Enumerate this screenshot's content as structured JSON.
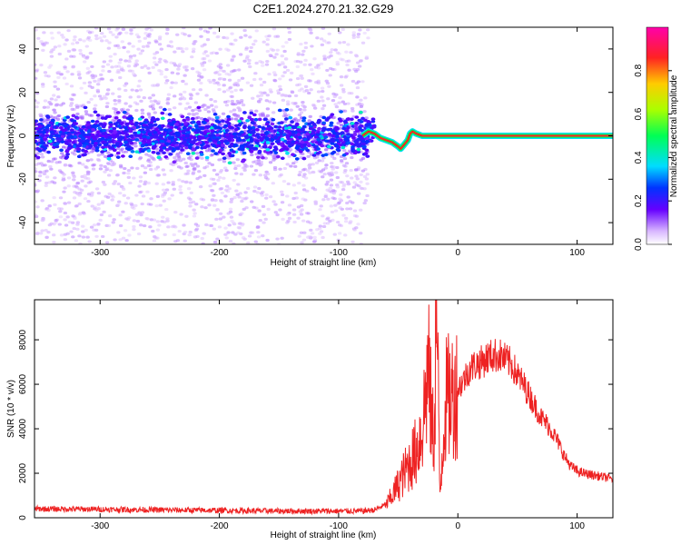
{
  "title": "C2E1.2024.270.21.32.G29",
  "chart_data": [
    {
      "type": "heatmap",
      "xlabel": "Height of straight line (km)",
      "ylabel": "Frequency (Hz)",
      "xlim": [
        -355,
        130
      ],
      "ylim": [
        -50,
        50
      ],
      "xticks": [
        -300,
        -200,
        -100,
        0,
        100
      ],
      "yticks": [
        -40,
        -20,
        0,
        20,
        40
      ],
      "colorbar": {
        "label": "Normalized spectral amplitude",
        "range": [
          0.0,
          1.0
        ],
        "ticks": [
          0.0,
          0.2,
          0.4,
          0.6,
          0.8
        ]
      },
      "noise_region_x": [
        -355,
        -75
      ],
      "signal_track": {
        "x": [
          -80,
          -75,
          -70,
          -65,
          -60,
          -55,
          -50,
          -48,
          -45,
          -42,
          -40,
          -38,
          -35,
          -30,
          -25,
          -20,
          0,
          50,
          100,
          130
        ],
        "y": [
          0,
          2,
          1,
          -1,
          -2,
          -3,
          -5,
          -6,
          -4,
          -2,
          1,
          2,
          1,
          0,
          0,
          0,
          0,
          0,
          0,
          0
        ]
      },
      "grid": false
    },
    {
      "type": "line",
      "xlabel": "Height of straight line (km)",
      "ylabel": "SNR (10 * v/v)",
      "xlim": [
        -355,
        130
      ],
      "ylim": [
        0,
        9800
      ],
      "xticks": [
        -300,
        -200,
        -100,
        0,
        100
      ],
      "yticks": [
        0,
        2000,
        4000,
        6000,
        8000
      ],
      "color": "#ee2222",
      "series": [
        {
          "x": [
            -355,
            -300,
            -250,
            -200,
            -150,
            -100,
            -80,
            -70,
            -60,
            -55,
            -50,
            -45,
            -40,
            -35,
            -30,
            -27,
            -25,
            -22,
            -20,
            -18,
            -17,
            -15,
            -12,
            -10,
            -5,
            0,
            5,
            10,
            15,
            20,
            25,
            30,
            35,
            40,
            45,
            50,
            55,
            60,
            65,
            70,
            75,
            80,
            85,
            90,
            95,
            100,
            105,
            110,
            115,
            120,
            125,
            130
          ],
          "y": [
            400,
            380,
            350,
            330,
            300,
            300,
            300,
            350,
            600,
            1000,
            1500,
            2000,
            2500,
            3000,
            4000,
            5500,
            6800,
            4500,
            3500,
            9700,
            7000,
            1000,
            4000,
            5300,
            5500,
            5800,
            6200,
            6700,
            6900,
            7000,
            7200,
            7300,
            7300,
            7100,
            6900,
            6400,
            6000,
            5500,
            5000,
            4500,
            4200,
            3800,
            3300,
            2700,
            2300,
            2100,
            2000,
            1950,
            1900,
            1850,
            1800,
            1750
          ]
        }
      ],
      "grid": false
    }
  ]
}
